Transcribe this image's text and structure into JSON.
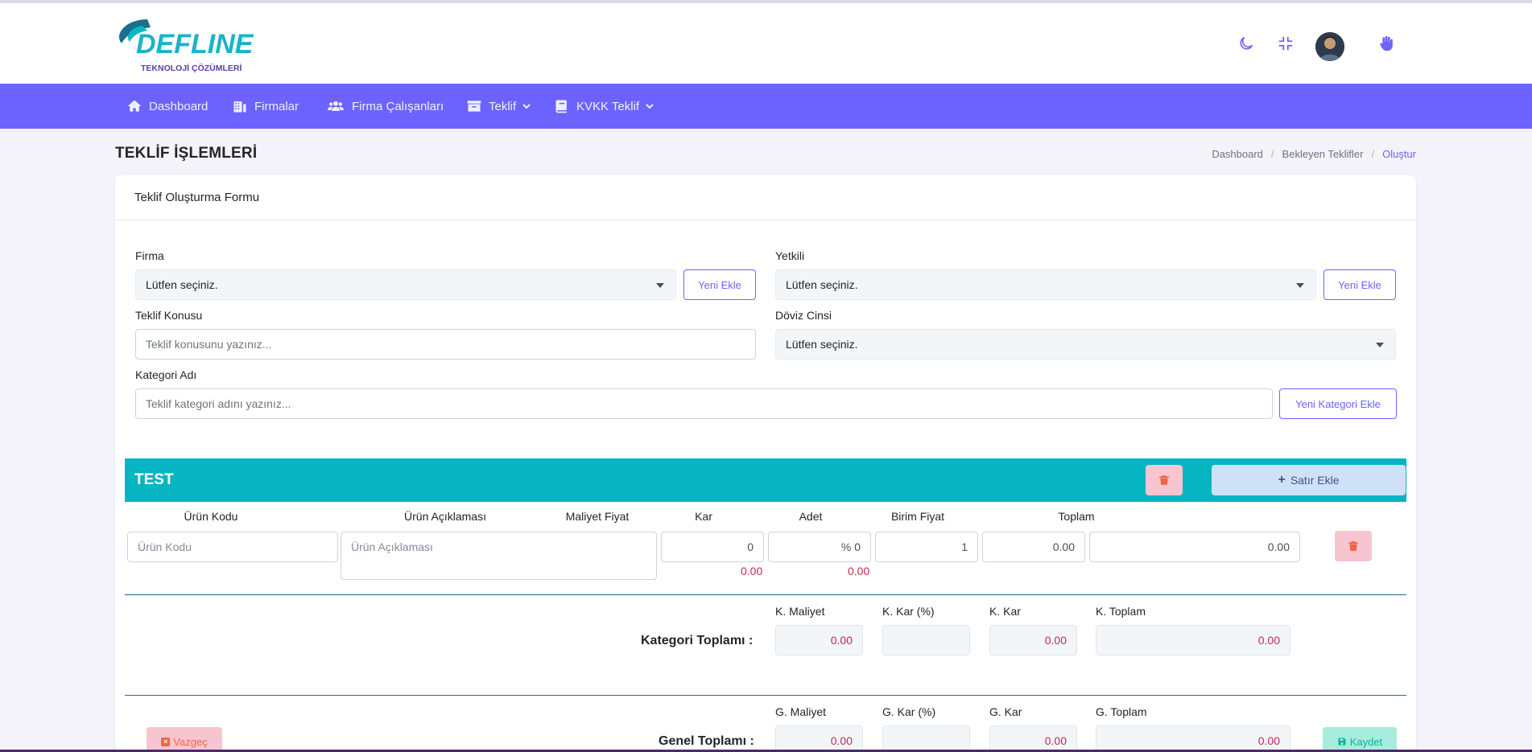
{
  "brand": {
    "logo_text": "DEFLINE",
    "logo_sub": "TEKNOLOJİ ÇÖZÜMLERİ",
    "colors": {
      "primary": "#6c63ff",
      "teal": "#06b4c2",
      "danger": "#f06548",
      "success": "#0ab39c",
      "value_red": "#c4284e"
    }
  },
  "header_icons": [
    "moon-icon",
    "compress-icon",
    "avatar",
    "hand-icon"
  ],
  "nav": [
    {
      "label": "Dashboard",
      "icon": "home-icon"
    },
    {
      "label": "Firmalar",
      "icon": "building-icon"
    },
    {
      "label": "Firma Çalışanları",
      "icon": "users-icon"
    },
    {
      "label": "Teklif",
      "icon": "archive-icon",
      "dropdown": true
    },
    {
      "label": "KVKK Teklif",
      "icon": "book-icon",
      "dropdown": true
    }
  ],
  "page": {
    "title": "TEKLİF İŞLEMLERİ",
    "breadcrumb": [
      "Dashboard",
      "Bekleyen Teklifler",
      "Oluştur"
    ]
  },
  "form": {
    "card_title": "Teklif Oluşturma Formu",
    "firma": {
      "label": "Firma",
      "value": "Lütfen seçiniz.",
      "add_label": "Yeni Ekle"
    },
    "yetkili": {
      "label": "Yetkili",
      "value": "Lütfen seçiniz.",
      "add_label": "Yeni Ekle"
    },
    "konu": {
      "label": "Teklif Konusu",
      "placeholder": "Teklif konusunu yazınız..."
    },
    "doviz": {
      "label": "Döviz Cinsi",
      "value": "Lütfen seçiniz."
    },
    "kategori": {
      "label": "Kategori Adı",
      "placeholder": "Teklif kategori adını yazınız...",
      "add_label": "Yeni Kategori Ekle"
    }
  },
  "category": {
    "name": "TEST",
    "add_row_label": "Satır Ekle",
    "columns": [
      "Ürün Kodu",
      "Ürün Açıklaması",
      "Maliyet Fiyat",
      "Kar",
      "Adet",
      "Birim Fiyat",
      "Toplam"
    ],
    "row": {
      "code_placeholder": "Ürün Kodu",
      "desc_placeholder": "Ürün Açıklaması",
      "cost": "0",
      "profit": "% 0",
      "qty": "1",
      "unit_price": "0.00",
      "total": "0.00",
      "cost_sub": "0.00",
      "profit_sub": "0.00"
    },
    "totals": {
      "label": "Kategori Toplamı :",
      "headers": [
        "K. Maliyet",
        "K. Kar (%)",
        "K. Kar",
        "K. Toplam"
      ],
      "values": [
        "0.00",
        "",
        "0.00",
        "0.00"
      ]
    }
  },
  "grand": {
    "label": "Genel Toplamı :",
    "headers": [
      "G. Maliyet",
      "G. Kar (%)",
      "G. Kar",
      "G. Toplam"
    ],
    "values": [
      "0.00",
      "",
      "0.00",
      "0.00"
    ],
    "cancel_label": "Vazgeç",
    "save_label": "Kaydet"
  }
}
